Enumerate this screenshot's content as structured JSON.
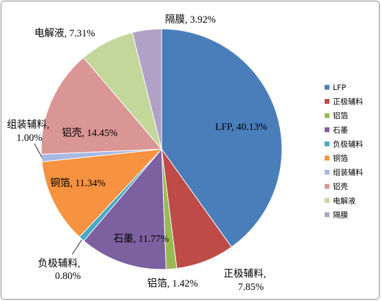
{
  "chart_data": {
    "type": "pie",
    "categories": [
      "LFP",
      "正极辅料",
      "铝箔",
      "石墨",
      "负极辅料",
      "铜箔",
      "组装辅料",
      "铝壳",
      "电解液",
      "隔膜"
    ],
    "values": [
      40.13,
      7.85,
      1.42,
      11.77,
      0.8,
      11.34,
      1.0,
      14.45,
      7.31,
      3.92
    ],
    "unit": "%",
    "colors": [
      "#4A7EBB",
      "#BE4B48",
      "#98B954",
      "#7D60A0",
      "#46AAC5",
      "#F69240",
      "#A7B9E3",
      "#DA9694",
      "#C3D79B",
      "#B2A1C7"
    ],
    "data_labels": [
      [
        "LFP, 40.13%"
      ],
      [
        "正极辅料,",
        "7.85%"
      ],
      [
        "铝箔, 1.42%"
      ],
      [
        "石墨, 11.77%"
      ],
      [
        "负极辅料,",
        "0.80%"
      ],
      [
        "铜箔, 11.34%"
      ],
      [
        "组装辅料,",
        "1.00%"
      ],
      [
        "铝壳, 14.45%"
      ],
      [
        "电解液, 7.31%"
      ],
      [
        "隔膜, 3.92%"
      ]
    ],
    "legend_position": "right"
  }
}
